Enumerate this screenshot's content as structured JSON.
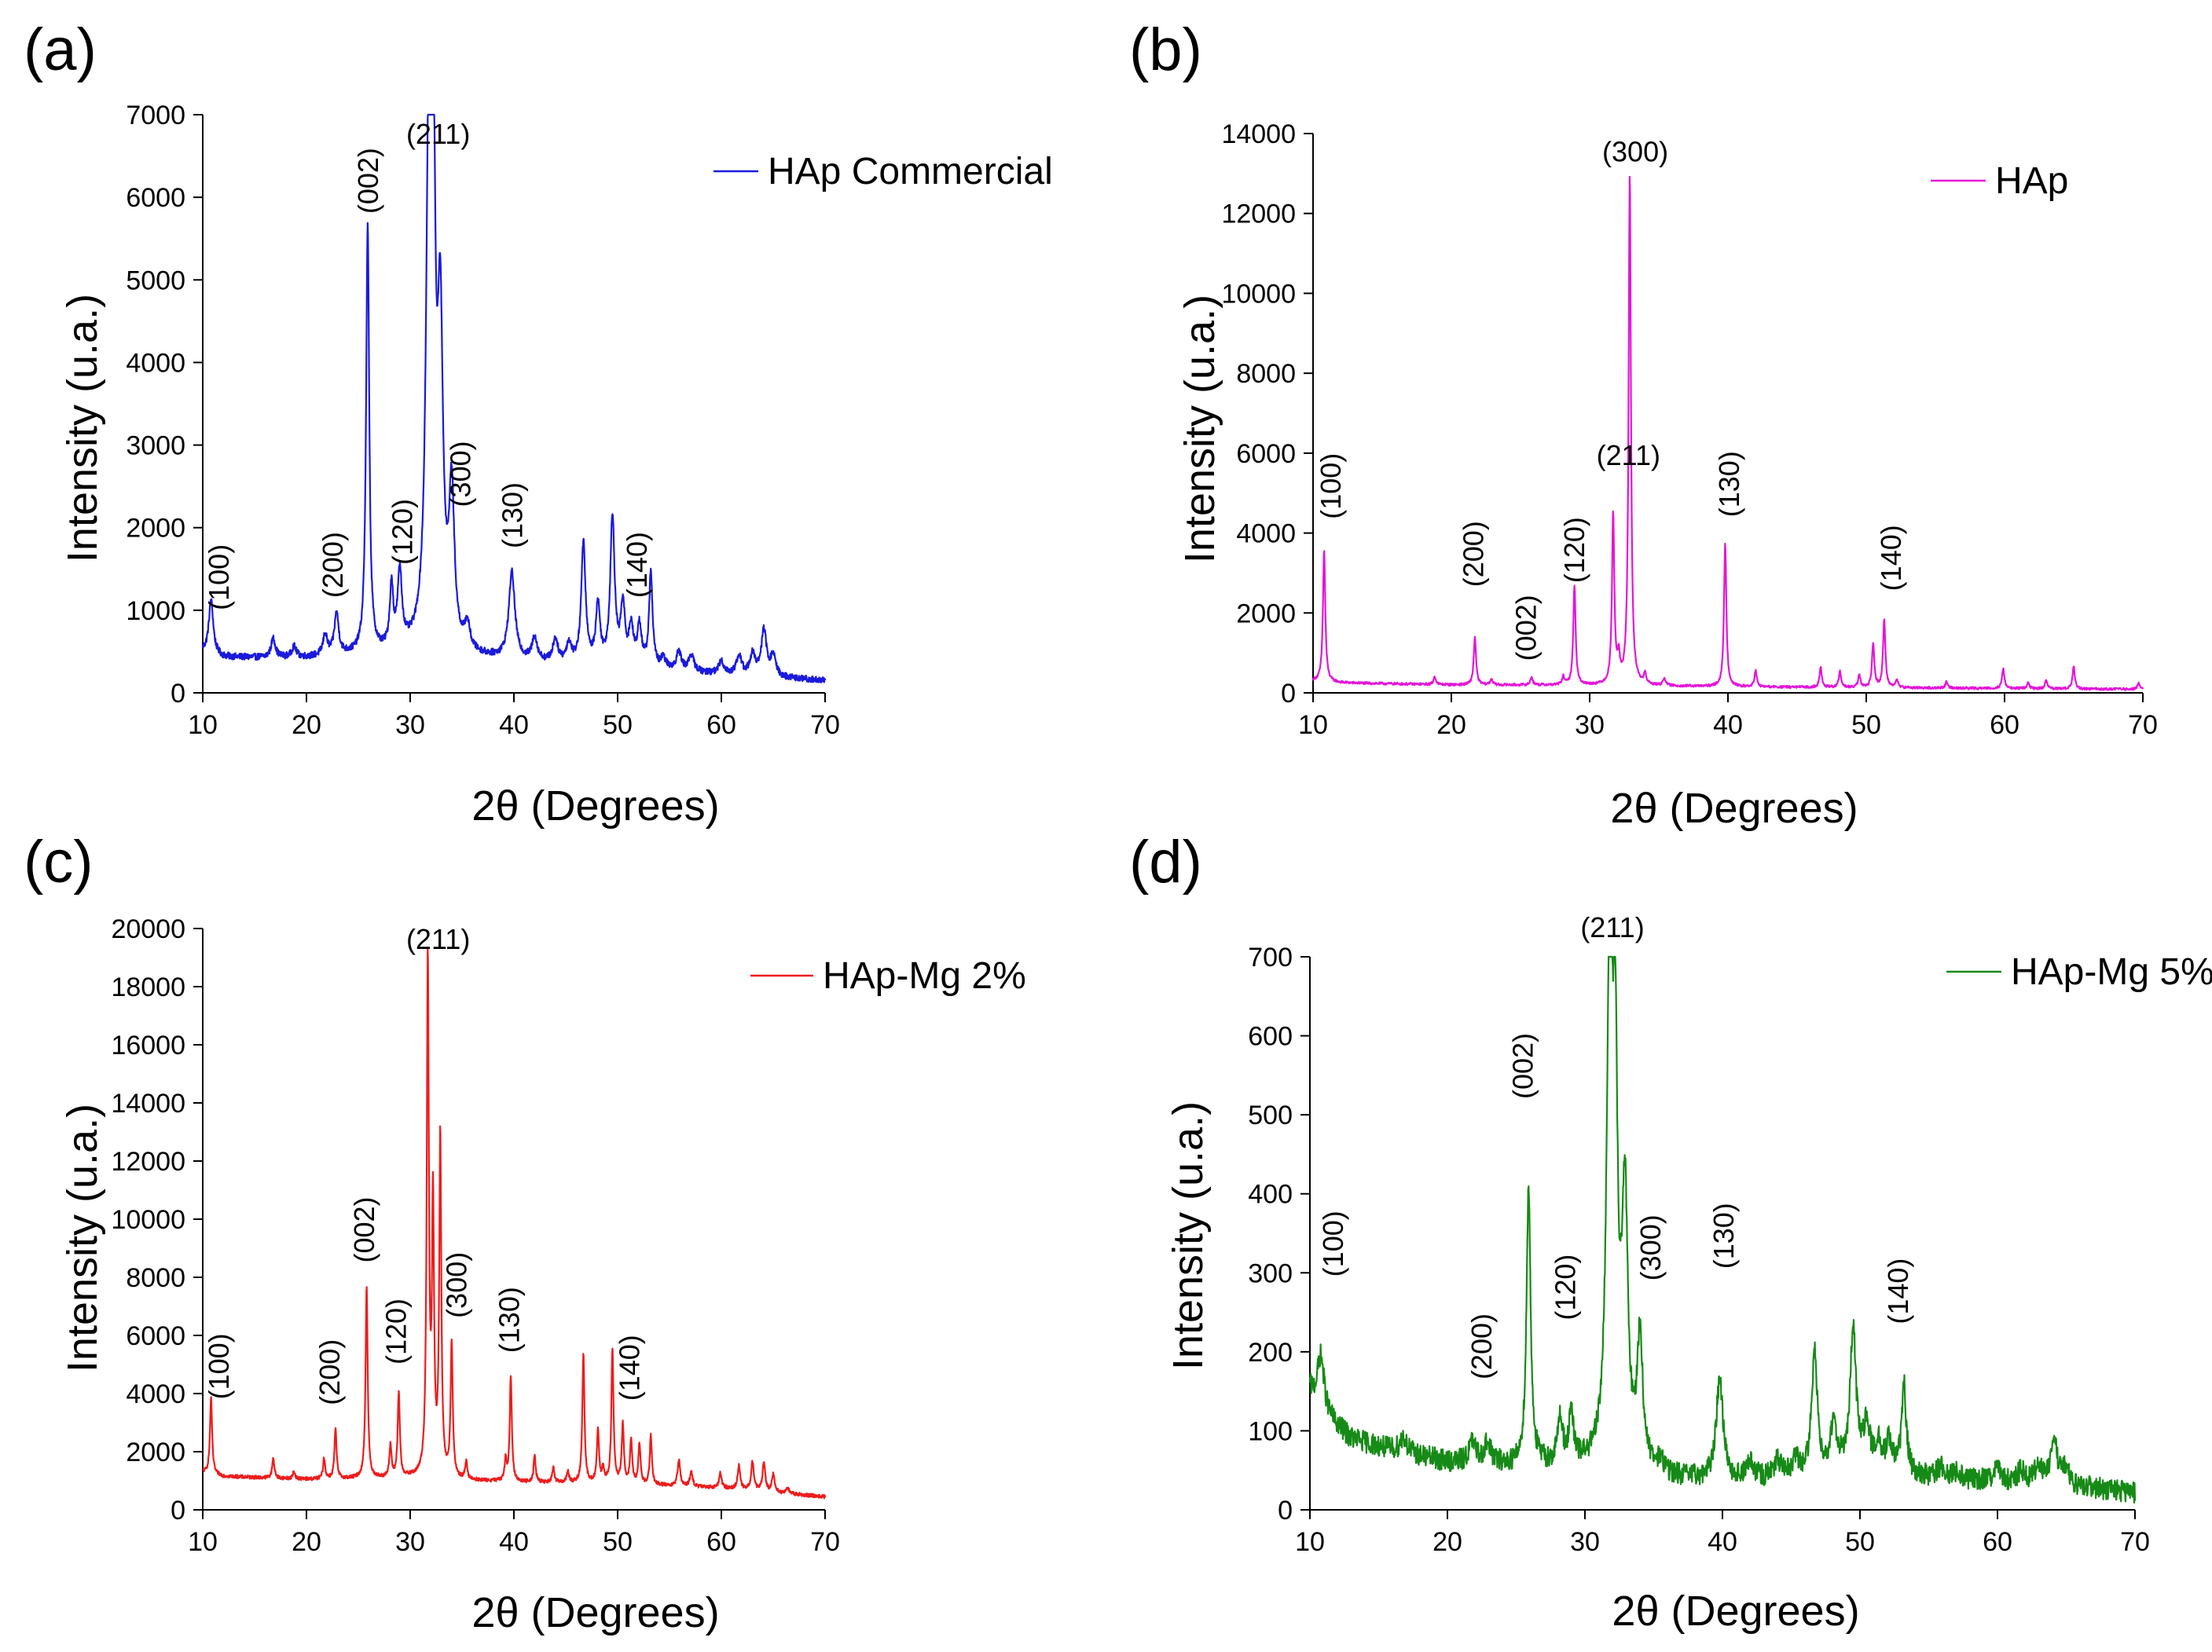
{
  "chart_data": [
    {
      "panel": "(a)",
      "type": "line",
      "ylabel": "Intensity (u.a.)",
      "xlabel": "2θ (Degrees)",
      "xlim": [
        10,
        70
      ],
      "ylim": [
        0,
        7000
      ],
      "xticks": [
        10,
        20,
        30,
        40,
        50,
        60,
        70
      ],
      "yticks": [
        0,
        1000,
        2000,
        3000,
        4000,
        5000,
        6000,
        7000
      ],
      "legend_position": "top-right",
      "color": "#1a1adc",
      "series": [
        {
          "name": "HAp Commercial",
          "color": "#1a1adc"
        }
      ],
      "baseline": [
        [
          10,
          500
        ],
        [
          12,
          430
        ],
        [
          16,
          420
        ],
        [
          20,
          420
        ],
        [
          25,
          450
        ],
        [
          30,
          480
        ],
        [
          36,
          420
        ],
        [
          40,
          380
        ],
        [
          45,
          330
        ],
        [
          50,
          300
        ],
        [
          55,
          260
        ],
        [
          60,
          220
        ],
        [
          65,
          180
        ],
        [
          70,
          150
        ]
      ],
      "noise": 40,
      "peaks": [
        [
          10.8,
          650,
          0.25
        ],
        [
          16.8,
          230,
          0.25
        ],
        [
          18.8,
          130,
          0.25
        ],
        [
          21.8,
          250,
          0.25
        ],
        [
          22.9,
          500,
          0.25
        ],
        [
          25.9,
          5150,
          0.18
        ],
        [
          28.2,
          730,
          0.2
        ],
        [
          29.0,
          900,
          0.25
        ],
        [
          31.8,
          5850,
          0.3
        ],
        [
          32.2,
          5600,
          0.25
        ],
        [
          32.9,
          3700,
          0.3
        ],
        [
          34.0,
          1850,
          0.3
        ],
        [
          35.5,
          300,
          0.3
        ],
        [
          39.8,
          1050,
          0.35
        ],
        [
          42.0,
          280,
          0.3
        ],
        [
          44.0,
          280,
          0.3
        ],
        [
          45.3,
          230,
          0.3
        ],
        [
          46.7,
          1450,
          0.25
        ],
        [
          48.1,
          700,
          0.25
        ],
        [
          49.5,
          1800,
          0.25
        ],
        [
          50.5,
          700,
          0.25
        ],
        [
          51.3,
          450,
          0.25
        ],
        [
          52.1,
          480,
          0.25
        ],
        [
          53.2,
          1150,
          0.2
        ],
        [
          54.4,
          120,
          0.3
        ],
        [
          55.9,
          220,
          0.3
        ],
        [
          57.1,
          200,
          0.3
        ],
        [
          60.0,
          150,
          0.3
        ],
        [
          61.7,
          230,
          0.3
        ],
        [
          63.0,
          250,
          0.3
        ],
        [
          64.1,
          550,
          0.3
        ],
        [
          65.0,
          250,
          0.3
        ]
      ],
      "peak_labels": [
        {
          "text": "(100)",
          "x": 12.5,
          "y": 1000,
          "rot": -90
        },
        {
          "text": "(200)",
          "x": 23.5,
          "y": 1150,
          "rot": -90
        },
        {
          "text": "(002)",
          "x": 26.9,
          "y": 5800,
          "rot": -90
        },
        {
          "text": "(120)",
          "x": 30.2,
          "y": 1550,
          "rot": -90
        },
        {
          "text": "(211)",
          "x": 32.7,
          "y": 6650,
          "rot": 0
        },
        {
          "text": "(300)",
          "x": 35.8,
          "y": 2250,
          "rot": -90
        },
        {
          "text": "(130)",
          "x": 40.8,
          "y": 1750,
          "rot": -90
        },
        {
          "text": "(140)",
          "x": 52.8,
          "y": 1150,
          "rot": -90
        }
      ]
    },
    {
      "panel": "(b)",
      "type": "line",
      "ylabel": "Intensity (u.a.)",
      "xlabel": "2θ (Degrees)",
      "xlim": [
        10,
        70
      ],
      "ylim": [
        0,
        14000
      ],
      "xticks": [
        10,
        20,
        30,
        40,
        50,
        60,
        70
      ],
      "yticks": [
        0,
        2000,
        4000,
        6000,
        8000,
        10000,
        12000,
        14000
      ],
      "legend_position": "top-right",
      "color": "#e316d8",
      "series": [
        {
          "name": "HAp",
          "color": "#e316d8"
        }
      ],
      "baseline": [
        [
          10,
          300
        ],
        [
          12,
          250
        ],
        [
          20,
          200
        ],
        [
          30,
          190
        ],
        [
          40,
          150
        ],
        [
          50,
          130
        ],
        [
          60,
          110
        ],
        [
          70,
          90
        ]
      ],
      "noise": 30,
      "peaks": [
        [
          10.8,
          3300,
          0.1
        ],
        [
          18.8,
          200,
          0.1
        ],
        [
          21.7,
          1200,
          0.1
        ],
        [
          22.9,
          150,
          0.1
        ],
        [
          25.8,
          200,
          0.1
        ],
        [
          28.1,
          200,
          0.1
        ],
        [
          28.9,
          2500,
          0.1
        ],
        [
          31.7,
          4300,
          0.1
        ],
        [
          32.1,
          600,
          0.1
        ],
        [
          32.9,
          12800,
          0.1
        ],
        [
          34.0,
          250,
          0.1
        ],
        [
          35.4,
          200,
          0.1
        ],
        [
          39.8,
          3600,
          0.1
        ],
        [
          42.0,
          400,
          0.1
        ],
        [
          46.7,
          500,
          0.1
        ],
        [
          48.1,
          400,
          0.1
        ],
        [
          49.5,
          300,
          0.1
        ],
        [
          50.5,
          1100,
          0.1
        ],
        [
          51.3,
          1700,
          0.1
        ],
        [
          52.2,
          200,
          0.1
        ],
        [
          55.8,
          150,
          0.1
        ],
        [
          59.9,
          500,
          0.1
        ],
        [
          61.7,
          150,
          0.1
        ],
        [
          63.0,
          200,
          0.1
        ],
        [
          65.0,
          550,
          0.1
        ],
        [
          69.7,
          150,
          0.1
        ]
      ],
      "peak_labels": [
        {
          "text": "(100)",
          "x": 12.0,
          "y": 4350,
          "rot": -90
        },
        {
          "text": "(200)",
          "x": 22.3,
          "y": 2650,
          "rot": -90
        },
        {
          "text": "(002)",
          "x": 26.1,
          "y": 800,
          "rot": -90
        },
        {
          "text": "(120)",
          "x": 29.6,
          "y": 2750,
          "rot": -90
        },
        {
          "text": "(211)",
          "x": 32.8,
          "y": 5700,
          "rot": 0
        },
        {
          "text": "(300)",
          "x": 33.3,
          "y": 13300,
          "rot": 0
        },
        {
          "text": "(130)",
          "x": 40.8,
          "y": 4400,
          "rot": -90
        },
        {
          "text": "(140)",
          "x": 52.5,
          "y": 2550,
          "rot": -90
        }
      ]
    },
    {
      "panel": "(c)",
      "type": "line",
      "ylabel": "Intensity (u.a.)",
      "xlabel": "2θ (Degrees)",
      "xlim": [
        10,
        70
      ],
      "ylim": [
        0,
        20000
      ],
      "xticks": [
        10,
        20,
        30,
        40,
        50,
        60,
        70
      ],
      "yticks": [
        0,
        2000,
        4000,
        6000,
        8000,
        10000,
        12000,
        14000,
        16000,
        18000,
        20000
      ],
      "legend_position": "top-right",
      "color": "#ee1c1c",
      "series": [
        {
          "name": "HAp-Mg 2%",
          "color": "#ee1c1c"
        }
      ],
      "baseline": [
        [
          10,
          1300
        ],
        [
          12,
          1150
        ],
        [
          20,
          1050
        ],
        [
          30,
          1100
        ],
        [
          36,
          1000
        ],
        [
          40,
          950
        ],
        [
          50,
          900
        ],
        [
          60,
          750
        ],
        [
          65,
          600
        ],
        [
          70,
          450
        ]
      ],
      "noise": 60,
      "peaks": [
        [
          10.8,
          2600,
          0.12
        ],
        [
          16.8,
          700,
          0.12
        ],
        [
          18.8,
          250,
          0.12
        ],
        [
          21.7,
          700,
          0.12
        ],
        [
          22.8,
          1700,
          0.12
        ],
        [
          25.8,
          6600,
          0.12
        ],
        [
          28.1,
          1100,
          0.12
        ],
        [
          28.9,
          2900,
          0.12
        ],
        [
          31.7,
          17700,
          0.12
        ],
        [
          32.2,
          9200,
          0.12
        ],
        [
          32.9,
          11700,
          0.12
        ],
        [
          34.0,
          4600,
          0.12
        ],
        [
          35.4,
          600,
          0.12
        ],
        [
          39.2,
          700,
          0.12
        ],
        [
          39.7,
          3600,
          0.12
        ],
        [
          42.0,
          900,
          0.12
        ],
        [
          43.8,
          500,
          0.12
        ],
        [
          45.2,
          400,
          0.12
        ],
        [
          46.7,
          4400,
          0.12
        ],
        [
          48.1,
          1800,
          0.12
        ],
        [
          48.6,
          500,
          0.12
        ],
        [
          49.5,
          4600,
          0.12
        ],
        [
          50.5,
          2000,
          0.12
        ],
        [
          51.3,
          1500,
          0.12
        ],
        [
          52.1,
          1400,
          0.12
        ],
        [
          53.2,
          1700,
          0.12
        ],
        [
          55.9,
          900,
          0.15
        ],
        [
          57.1,
          500,
          0.15
        ],
        [
          59.9,
          500,
          0.15
        ],
        [
          61.7,
          800,
          0.15
        ],
        [
          63.0,
          1000,
          0.15
        ],
        [
          64.1,
          1000,
          0.15
        ],
        [
          65.0,
          600,
          0.15
        ],
        [
          66.4,
          200,
          0.15
        ]
      ],
      "peak_labels": [
        {
          "text": "(100)",
          "x": 12.5,
          "y": 3800,
          "rot": -90
        },
        {
          "text": "(200)",
          "x": 23.2,
          "y": 3600,
          "rot": -90
        },
        {
          "text": "(002)",
          "x": 26.5,
          "y": 8500,
          "rot": -90
        },
        {
          "text": "(120)",
          "x": 29.6,
          "y": 5000,
          "rot": -90
        },
        {
          "text": "(211)",
          "x": 32.7,
          "y": 19300,
          "rot": 0
        },
        {
          "text": "(300)",
          "x": 35.4,
          "y": 6600,
          "rot": -90
        },
        {
          "text": "(130)",
          "x": 40.5,
          "y": 5400,
          "rot": -90
        },
        {
          "text": "(140)",
          "x": 52.1,
          "y": 3750,
          "rot": -90
        }
      ]
    },
    {
      "panel": "(d)",
      "type": "line",
      "ylabel": "Intensity (u.a.)",
      "xlabel": "2θ (Degrees)",
      "xlim": [
        10,
        70
      ],
      "ylim": [
        0,
        700
      ],
      "xticks": [
        10,
        20,
        30,
        40,
        50,
        60,
        70
      ],
      "yticks": [
        0,
        100,
        200,
        300,
        400,
        500,
        600,
        700
      ],
      "legend_position": "top-right",
      "color": "#168a16",
      "series": [
        {
          "name": "HAp-Mg 5%",
          "color": "#168a16"
        }
      ],
      "baseline": [
        [
          10,
          150
        ],
        [
          11,
          120
        ],
        [
          13,
          90
        ],
        [
          16,
          75
        ],
        [
          20,
          60
        ],
        [
          25,
          55
        ],
        [
          30,
          55
        ],
        [
          36,
          40
        ],
        [
          40,
          35
        ],
        [
          45,
          40
        ],
        [
          50,
          55
        ],
        [
          55,
          40
        ],
        [
          60,
          35
        ],
        [
          65,
          30
        ],
        [
          70,
          22
        ]
      ],
      "noise": 14,
      "peaks": [
        [
          10.8,
          70,
          0.3
        ],
        [
          16.8,
          20,
          0.3
        ],
        [
          21.8,
          25,
          0.3
        ],
        [
          22.9,
          25,
          0.3
        ],
        [
          25.9,
          350,
          0.18
        ],
        [
          28.2,
          60,
          0.2
        ],
        [
          29.0,
          60,
          0.2
        ],
        [
          31.8,
          640,
          0.25
        ],
        [
          32.2,
          440,
          0.2
        ],
        [
          32.9,
          330,
          0.25
        ],
        [
          34.0,
          160,
          0.25
        ],
        [
          35.5,
          15,
          0.3
        ],
        [
          39.8,
          130,
          0.3
        ],
        [
          42.0,
          20,
          0.3
        ],
        [
          44.0,
          20,
          0.3
        ],
        [
          45.3,
          20,
          0.3
        ],
        [
          46.7,
          150,
          0.25
        ],
        [
          48.1,
          60,
          0.25
        ],
        [
          49.5,
          175,
          0.25
        ],
        [
          50.5,
          50,
          0.25
        ],
        [
          51.3,
          30,
          0.25
        ],
        [
          52.1,
          35,
          0.25
        ],
        [
          53.2,
          110,
          0.2
        ],
        [
          55.9,
          15,
          0.3
        ],
        [
          57.1,
          10,
          0.3
        ],
        [
          60.0,
          15,
          0.3
        ],
        [
          61.7,
          15,
          0.3
        ],
        [
          63.0,
          25,
          0.3
        ],
        [
          64.1,
          55,
          0.3
        ],
        [
          65.0,
          20,
          0.3
        ]
      ],
      "peak_labels": [
        {
          "text": "(100)",
          "x": 12.4,
          "y": 295,
          "rot": -90
        },
        {
          "text": "(200)",
          "x": 23.2,
          "y": 165,
          "rot": -90
        },
        {
          "text": "(002)",
          "x": 26.2,
          "y": 520,
          "rot": -90
        },
        {
          "text": "(120)",
          "x": 29.3,
          "y": 240,
          "rot": -90
        },
        {
          "text": "(211)",
          "x": 32.0,
          "y": 725,
          "rot": 0
        },
        {
          "text": "(300)",
          "x": 35.5,
          "y": 290,
          "rot": -90
        },
        {
          "text": "(130)",
          "x": 40.8,
          "y": 305,
          "rot": -90
        },
        {
          "text": "(140)",
          "x": 53.5,
          "y": 235,
          "rot": -90
        }
      ]
    }
  ]
}
